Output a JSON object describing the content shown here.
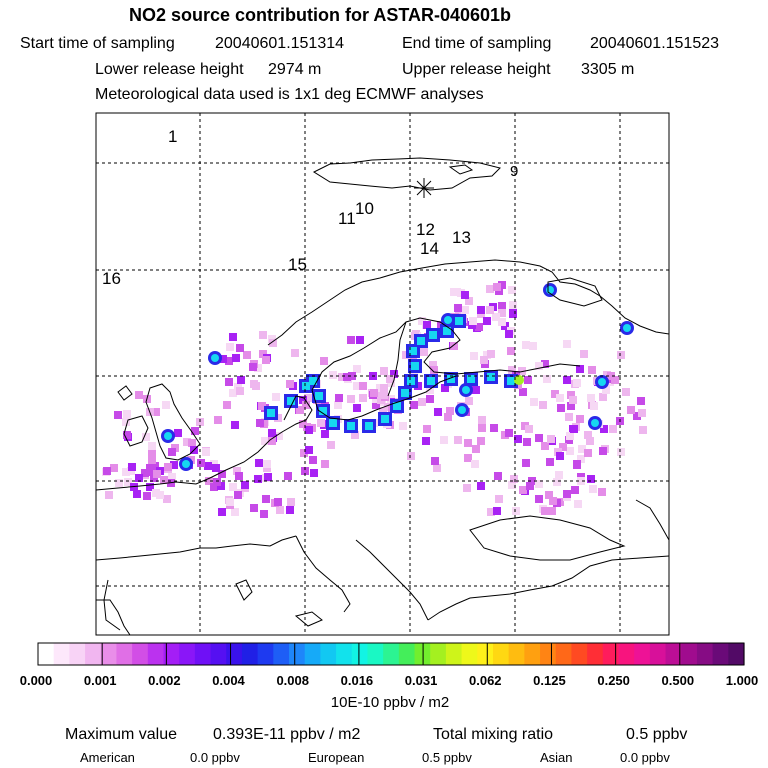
{
  "header": {
    "title": "NO2 source contribution for ASTAR-040601b",
    "start_label": "Start time of sampling",
    "start_value": "20040601.151314",
    "end_label": "End time of sampling",
    "end_value": "20040601.151523",
    "lower_label": "Lower release height",
    "lower_value": "2974 m",
    "upper_label": "Upper release height",
    "upper_value": "3305 m",
    "met_text": "Meteorological data used is 1x1 deg ECMWF analyses"
  },
  "map": {
    "trajectory_labels": [
      "1",
      "9",
      "10",
      "11",
      "12",
      "13",
      "14",
      "15",
      "16"
    ]
  },
  "colorbar": {
    "tick_labels": [
      "0.000",
      "0.001",
      "0.002",
      "0.004",
      "0.008",
      "0.016",
      "0.031",
      "0.062",
      "0.125",
      "0.250",
      "0.500",
      "1.000"
    ],
    "colors": [
      "#ffffff",
      "#fde8fb",
      "#f8d3f6",
      "#f1b6f0",
      "#e98ee9",
      "#e06fe6",
      "#d24ee6",
      "#bb32ef",
      "#a41ef6",
      "#8a16f8",
      "#6f10f6",
      "#5510f2",
      "#3a12ec",
      "#2020e6",
      "#1e3af0",
      "#1e5ef6",
      "#1e86fa",
      "#16aaf8",
      "#12c8f2",
      "#12e2ec",
      "#12f4e4",
      "#1af8c4",
      "#2cf492",
      "#44ee5a",
      "#72ee2e",
      "#a4f020",
      "#cef41a",
      "#eef81a",
      "#fff01a",
      "#ffd812",
      "#ffbc10",
      "#ffa010",
      "#ff8414",
      "#ff6818",
      "#ff4a22",
      "#ff2e36",
      "#ff1c5c",
      "#f8147e",
      "#ee1296",
      "#d8109a",
      "#bc0e96",
      "#a00c8e",
      "#860c84",
      "#6a0a78",
      "#520a66"
    ],
    "unit": "10E-10 ppbv / m2"
  },
  "footer": {
    "max_label": "Maximum value",
    "max_value": "0.393E-11 ppbv / m2",
    "total_label": "Total mixing ratio",
    "total_value": "0.5 ppbv",
    "american_label": "American",
    "american_value": "0.0 ppbv",
    "european_label": "European",
    "european_value": "0.5 ppbv",
    "asian_label": "Asian",
    "asian_value": "0.0 ppbv"
  }
}
